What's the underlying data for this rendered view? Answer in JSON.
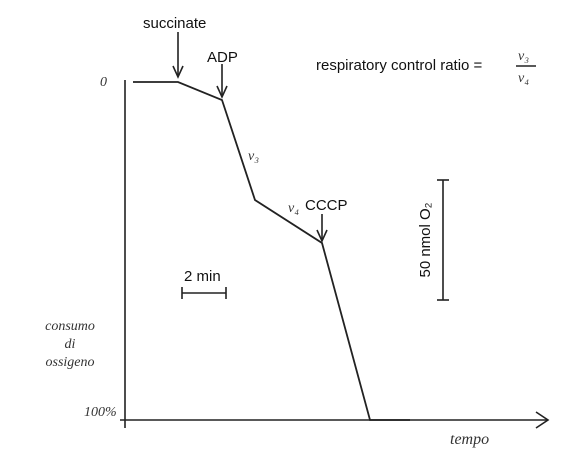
{
  "labels": {
    "succinate": "succinate",
    "adp": "ADP",
    "cccp": "CCCP",
    "v3": "v₃",
    "v4": "v₄",
    "ratio": {
      "text": "respiratory control ratio =",
      "numerator": "v₃",
      "denominator": "v₄"
    },
    "time_scale": "2 min",
    "oxygen_scale": "50 nmol O₂"
  },
  "axes": {
    "y_top": "0",
    "y_bottom": "100%",
    "y_title": [
      "consumo",
      "di",
      "ossigeno"
    ],
    "x_title": "tempo"
  }
}
